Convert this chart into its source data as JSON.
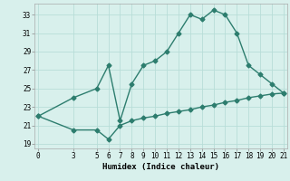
{
  "upper_x": [
    0,
    3,
    5,
    6,
    7,
    8,
    9,
    10,
    11,
    12,
    13,
    14,
    15,
    16,
    17,
    18,
    19,
    20,
    21
  ],
  "upper_y": [
    22.0,
    24.0,
    25.0,
    27.5,
    21.5,
    25.5,
    27.5,
    28.0,
    29.0,
    31.0,
    33.0,
    32.5,
    33.5,
    33.0,
    31.0,
    27.5,
    26.5,
    25.5,
    24.5
  ],
  "lower_x": [
    0,
    3,
    5,
    6,
    7,
    8,
    9,
    10,
    11,
    12,
    13,
    14,
    15,
    16,
    17,
    18,
    19,
    20,
    21
  ],
  "lower_y": [
    22.0,
    20.5,
    20.5,
    19.5,
    21.0,
    21.5,
    21.8,
    22.0,
    22.3,
    22.5,
    22.7,
    23.0,
    23.2,
    23.5,
    23.7,
    24.0,
    24.2,
    24.4,
    24.5
  ],
  "line_color": "#2d7d6e",
  "bg_color": "#d8f0ec",
  "grid_color": "#b8ddd8",
  "xlabel": "Humidex (Indice chaleur)",
  "xticks": [
    0,
    3,
    5,
    6,
    7,
    8,
    9,
    10,
    11,
    12,
    13,
    14,
    15,
    16,
    17,
    18,
    19,
    20,
    21
  ],
  "yticks": [
    19,
    21,
    23,
    25,
    27,
    29,
    31,
    33
  ],
  "xlim": [
    -0.3,
    21.3
  ],
  "ylim": [
    18.5,
    34.2
  ],
  "marker": "D",
  "marker_size": 2.5,
  "linewidth": 1.0,
  "fontsize_ticks": 5.5,
  "fontsize_label": 6.5
}
